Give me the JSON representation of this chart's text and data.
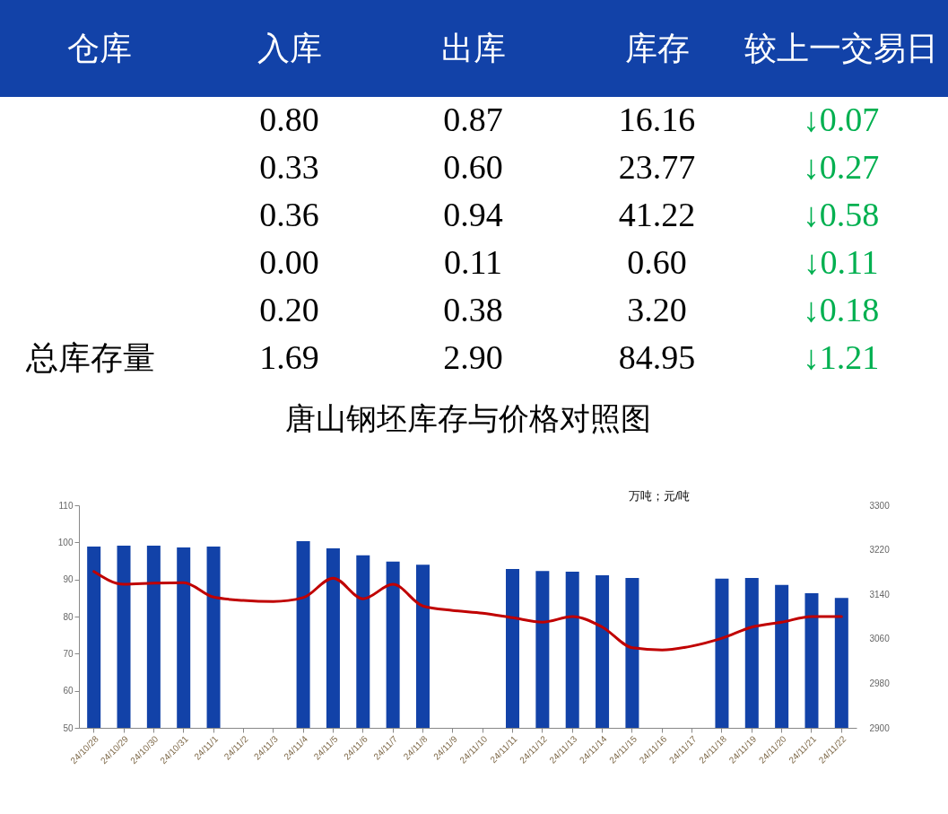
{
  "chart_data": [
    {
      "type": "other",
      "ylabel": "仓库",
      "categories": [
        "入库",
        "出库",
        "库存",
        "较上一交易日"
      ],
      "series": [
        {
          "values": [
            0.8,
            0.87,
            16.16,
            0.07
          ],
          "value_labels": [
            "0.80",
            "0.87",
            "16.16",
            "↓0.07"
          ]
        },
        {
          "values": [
            0.33,
            0.6,
            23.77,
            0.27
          ],
          "value_labels": [
            "0.33",
            "0.60",
            "23.77",
            "↓0.27"
          ]
        },
        {
          "values": [
            0.36,
            0.94,
            41.22,
            0.58
          ],
          "value_labels": [
            "0.36",
            "0.94",
            "41.22",
            "↓0.58"
          ]
        },
        {
          "values": [
            0.0,
            0.11,
            0.6,
            0.11
          ],
          "value_labels": [
            "0.00",
            "0.11",
            "0.60",
            "↓0.11"
          ]
        },
        {
          "values": [
            0.2,
            0.38,
            3.2,
            0.18
          ],
          "value_labels": [
            "0.20",
            "0.38",
            "3.20",
            "↓0.18"
          ]
        },
        {
          "name": "总库存量",
          "values": [
            1.69,
            2.9,
            84.95,
            1.21
          ],
          "value_labels": [
            "1.69",
            "2.90",
            "84.95",
            "↓1.21"
          ]
        }
      ]
    },
    {
      "type": "bar",
      "title": "唐山钢坯库存与价格对照图",
      "annotations": [
        "万吨；元/吨"
      ],
      "categories": [
        "24/10/28",
        "24/10/29",
        "24/10/30",
        "24/10/31",
        "24/11/1",
        "24/11/2",
        "24/11/3",
        "24/11/4",
        "24/11/5",
        "24/11/6",
        "24/11/7",
        "24/11/8",
        "24/11/9",
        "24/11/10",
        "24/11/11",
        "24/11/12",
        "24/11/13",
        "24/11/14",
        "24/11/15",
        "24/11/16",
        "24/11/17",
        "24/11/18",
        "24/11/19",
        "24/11/20",
        "24/11/21",
        "24/11/22"
      ],
      "series": [
        {
          "type": "bar",
          "color": "#1242a8",
          "values": [
            98.9,
            99.1,
            99.1,
            98.6,
            98.9,
            null,
            null,
            100.3,
            98.4,
            96.5,
            94.8,
            94.0,
            null,
            null,
            92.8,
            92.3,
            92.1,
            91.1,
            90.4,
            null,
            null,
            90.2,
            90.4,
            88.5,
            86.3,
            85.0
          ]
        },
        {
          "type": "line",
          "axis": "y2",
          "color": "#c00000",
          "values": [
            3181,
            3158,
            3160,
            3161,
            3135,
            3129,
            3127,
            3134,
            3169,
            3132,
            3158,
            3119,
            3111,
            3106,
            3098,
            3090,
            3100,
            3081,
            3044,
            3040,
            3047,
            3061,
            3081,
            3090,
            3100,
            3100
          ]
        }
      ],
      "ylim": [
        50,
        110
      ],
      "yticks": [
        50,
        60,
        70,
        80,
        90,
        100,
        110
      ],
      "y2lim": [
        2900,
        3300
      ],
      "y2ticks": [
        2900,
        2980,
        3060,
        3140,
        3220,
        3300
      ]
    }
  ]
}
